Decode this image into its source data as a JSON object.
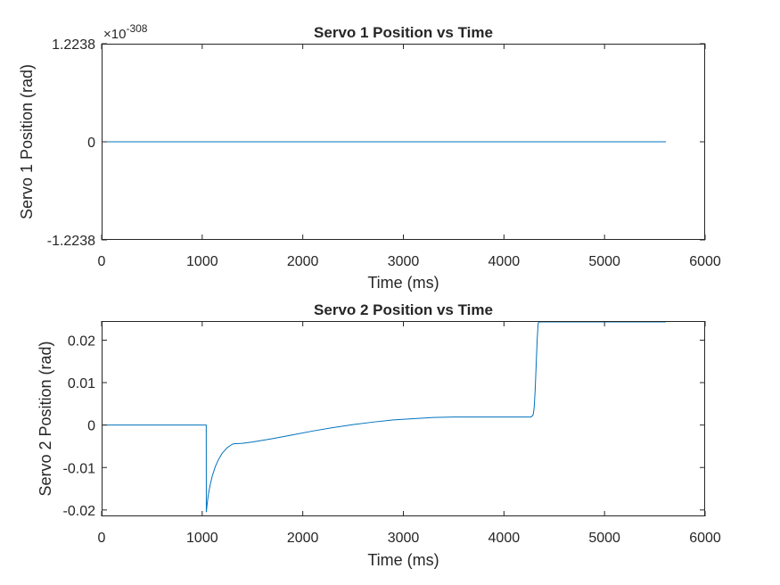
{
  "chart_data": [
    {
      "type": "line",
      "title": "Servo 1 Position vs Time",
      "xlabel": "Time (ms)",
      "ylabel": "Servo 1 Position (rad)",
      "xlim": [
        0,
        6000
      ],
      "ylim": [
        -1.2238,
        1.2238
      ],
      "exponent_label": "×10",
      "exponent_power": "-308",
      "x_tick_labels": [
        "0",
        "1000",
        "2000",
        "3000",
        "4000",
        "5000",
        "6000"
      ],
      "y_tick_labels": [
        "-1.2238",
        "0",
        "1.2238"
      ],
      "y_tick_values": [
        -1.2238,
        0,
        1.2238
      ],
      "grid": false,
      "series": [
        {
          "color": "#0072BD",
          "x": [
            0,
            5610
          ],
          "y": [
            0,
            0
          ]
        }
      ]
    },
    {
      "type": "line",
      "title": "Servo 2 Position vs Time",
      "xlabel": "Time (ms)",
      "ylabel": "Servo 2 Position (rad)",
      "xlim": [
        0,
        6000
      ],
      "ylim": [
        -0.0215,
        0.0245
      ],
      "x_tick_labels": [
        "0",
        "1000",
        "2000",
        "3000",
        "4000",
        "5000",
        "6000"
      ],
      "y_tick_labels": [
        "-0.02",
        "-0.01",
        "0",
        "0.01",
        "0.02"
      ],
      "y_tick_values": [
        -0.02,
        -0.01,
        0,
        0.01,
        0.02
      ],
      "grid": false,
      "series": [
        {
          "color": "#0072BD",
          "x": [
            0,
            1040,
            1041,
            1050,
            1060,
            1080,
            1100,
            1130,
            1160,
            1200,
            1250,
            1300,
            1320,
            1400,
            1500,
            1700,
            1900,
            2100,
            2300,
            2500,
            2700,
            2900,
            3100,
            3300,
            3500,
            3800,
            4100,
            4270,
            4290,
            4300,
            4310,
            4320,
            4330,
            4340,
            4350,
            4360,
            5610
          ],
          "y": [
            0,
            0,
            -0.0205,
            -0.0185,
            -0.0165,
            -0.014,
            -0.012,
            -0.0098,
            -0.0082,
            -0.0066,
            -0.0053,
            -0.0045,
            -0.0044,
            -0.0043,
            -0.004,
            -0.0032,
            -0.0023,
            -0.0014,
            -0.0006,
            0.0001,
            0.0007,
            0.0012,
            0.0015,
            0.0018,
            0.0019,
            0.0019,
            0.0019,
            0.0019,
            0.0024,
            0.004,
            0.008,
            0.014,
            0.02,
            0.024,
            0.0243,
            0.0243,
            0.0243
          ]
        }
      ]
    }
  ]
}
